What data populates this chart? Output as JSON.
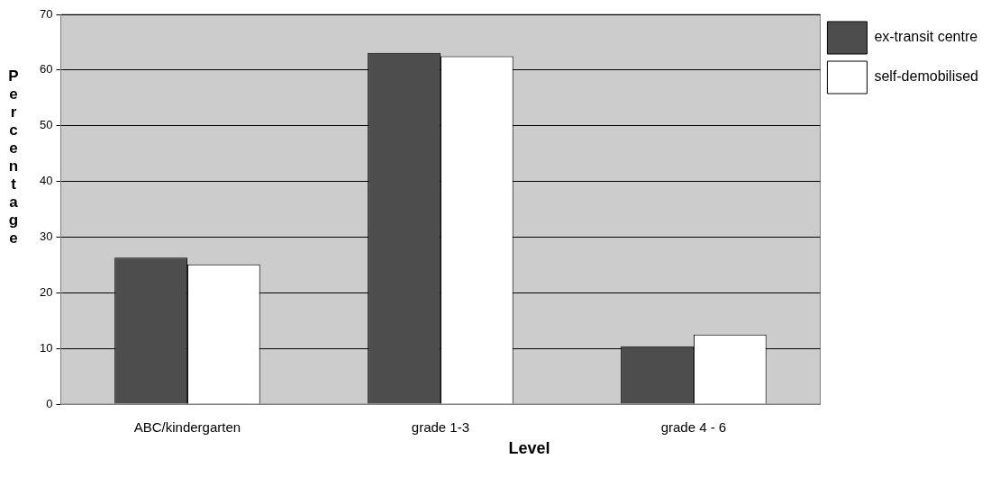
{
  "chart_data": {
    "type": "bar",
    "xlabel": "Level",
    "ylabel": "Percentage",
    "categories": [
      "ABC/kindergarten",
      "grade 1-3",
      "grade 4 - 6"
    ],
    "series": [
      {
        "name": "ex-transit centre",
        "color": "#4d4d4d",
        "values": [
          26.3,
          63.1,
          10.4
        ]
      },
      {
        "name": "self-demobilised",
        "color": "#ffffff",
        "values": [
          25.1,
          62.5,
          12.5
        ]
      }
    ],
    "ylim": [
      0,
      70
    ],
    "yticks": [
      0,
      10,
      20,
      30,
      40,
      50,
      60,
      70
    ],
    "grid": "y",
    "legend": "top right"
  }
}
